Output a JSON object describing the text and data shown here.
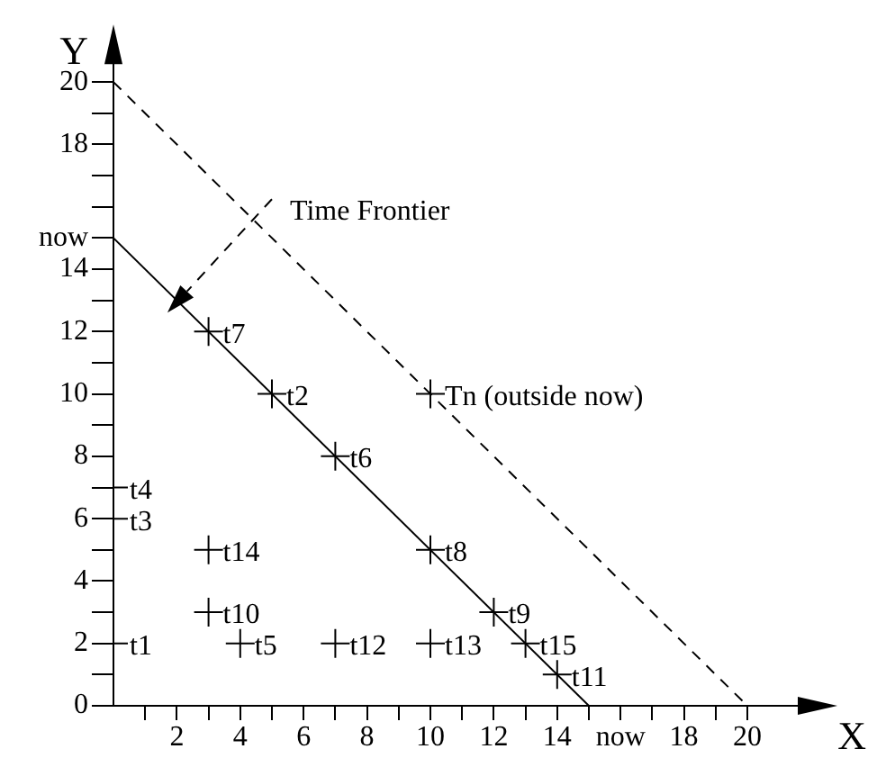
{
  "chart_data": {
    "type": "scatter",
    "xlabel": "X",
    "ylabel": "Y",
    "xlim": [
      0,
      22.5
    ],
    "ylim": [
      0,
      21.5
    ],
    "grid": false,
    "legend": false,
    "xticks": [
      {
        "value": 1,
        "label": null
      },
      2,
      {
        "value": 3,
        "label": null
      },
      4,
      {
        "value": 5,
        "label": null
      },
      6,
      {
        "value": 7,
        "label": null
      },
      8,
      {
        "value": 9,
        "label": null
      },
      10,
      {
        "value": 11,
        "label": null
      },
      12,
      {
        "value": 13,
        "label": null
      },
      14,
      {
        "value": 15,
        "label": null
      },
      {
        "value": 16,
        "label": "now"
      },
      {
        "value": 17,
        "label": null
      },
      18,
      {
        "value": 19,
        "label": null
      },
      20
    ],
    "yticks": [
      0,
      {
        "value": 1,
        "label": null
      },
      2,
      {
        "value": 3,
        "label": null
      },
      4,
      {
        "value": 5,
        "label": null
      },
      6,
      {
        "value": 7,
        "label": null
      },
      8,
      {
        "value": 9,
        "label": null
      },
      10,
      {
        "value": 11,
        "label": null
      },
      12,
      {
        "value": 13,
        "label": null
      },
      14,
      {
        "value": 15,
        "label": "now"
      },
      {
        "value": 16,
        "label": null
      },
      {
        "value": 17,
        "label": null
      },
      18,
      {
        "value": 19,
        "label": null
      },
      20
    ],
    "series": [
      {
        "type": "scatter",
        "color": "#000000",
        "marker": "cross",
        "x": [
          0,
          5,
          0,
          0,
          4,
          7,
          3,
          10,
          12,
          3,
          14,
          7,
          10,
          3,
          13,
          10
        ],
        "values": [
          2,
          10,
          6,
          7,
          2,
          8,
          12,
          5,
          3,
          3,
          1,
          2,
          2,
          5,
          2,
          10
        ]
      },
      {
        "type": "line",
        "color": "#000000",
        "marker": "none",
        "line_style": "solid",
        "x": [
          0,
          15
        ],
        "values": [
          15,
          0
        ]
      },
      {
        "type": "line",
        "color": "#000000",
        "marker": "none",
        "line_style": "dashed",
        "x": [
          0,
          20
        ],
        "values": [
          20,
          0
        ]
      }
    ],
    "annotations": [
      {
        "text": "t1",
        "x": 0,
        "y": 2
      },
      {
        "text": "t2",
        "x": 5,
        "y": 10
      },
      {
        "text": "t3",
        "x": 0,
        "y": 6
      },
      {
        "text": "t4",
        "x": 0,
        "y": 7
      },
      {
        "text": "t5",
        "x": 4,
        "y": 2
      },
      {
        "text": "t6",
        "x": 7,
        "y": 8
      },
      {
        "text": "t7",
        "x": 3,
        "y": 12
      },
      {
        "text": "t8",
        "x": 10,
        "y": 5
      },
      {
        "text": "t9",
        "x": 12,
        "y": 3
      },
      {
        "text": "t10",
        "x": 3,
        "y": 3
      },
      {
        "text": "t11",
        "x": 14,
        "y": 1
      },
      {
        "text": "t12",
        "x": 7,
        "y": 2
      },
      {
        "text": "t13",
        "x": 10,
        "y": 2
      },
      {
        "text": "t14",
        "x": 3,
        "y": 5
      },
      {
        "text": "t15",
        "x": 13,
        "y": 2
      },
      {
        "text": "Tn (outside now)",
        "x": 10,
        "y": 10
      },
      "Time Frontier"
    ]
  }
}
